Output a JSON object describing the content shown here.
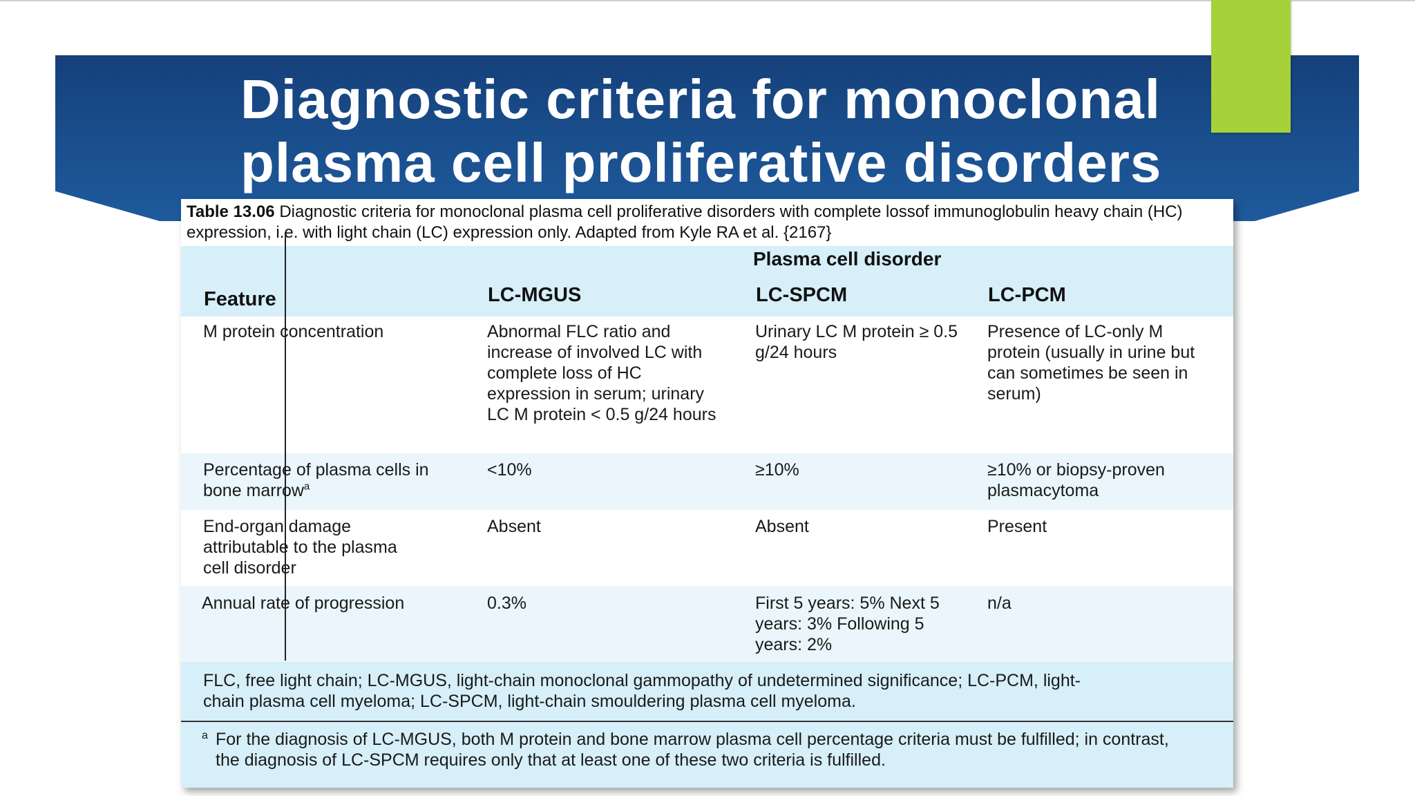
{
  "slide": {
    "title": "Diagnostic criteria for monoclonal plasma cell proliferative disorders"
  },
  "caption": {
    "label": "Table 13.06",
    "text": "Diagnostic criteria for monoclonal plasma cell proliferative disorders with complete lossof immunoglobulin heavy chain (HC) expression, i.e. with light chain (LC) expression only. Adapted from Kyle RA et al. {2167}"
  },
  "table": {
    "group_header": "Plasma cell disorder",
    "columns": [
      "Feature",
      "LC-MGUS",
      "LC-SPCM",
      "LC-PCM"
    ],
    "rows": [
      {
        "feature": "M protein concentration",
        "lc_mgus": "Abnormal FLC ratio and increase of involved LC with complete loss of HC expression in serum; urinary LC M protein < 0.5 g/24 hours",
        "lc_spcm": "Urinary LC M protein ≥ 0.5 g/24 hours",
        "lc_pcm": "Presence of LC-only M protein (usually in urine but can sometimes be seen in serum)"
      },
      {
        "feature": "Percentage of plasma cells in bone marrow",
        "feature_sup": "a",
        "lc_mgus": "<10%",
        "lc_spcm": "≥10%",
        "lc_pcm": "≥10% or biopsy-proven plasmacytoma"
      },
      {
        "feature": "End-organ damage attributable to the plasma cell disorder",
        "lc_mgus": "Absent",
        "lc_spcm": "Absent",
        "lc_pcm": "Present"
      },
      {
        "feature": "Annual rate of progression",
        "lc_mgus": "0.3%",
        "lc_spcm": "First 5 years: 5% Next 5 years: 3% Following 5 years: 2%",
        "lc_pcm": "n/a"
      }
    ],
    "abbreviations": "FLC, free light chain; LC-MGUS, light-chain monoclonal gammopathy of undetermined significance; LC-PCM, light-chain plasma cell myeloma; LC-SPCM, light-chain smouldering plasma cell myeloma.",
    "footnote_marker": "a",
    "footnote": "For the diagnosis of LC-MGUS, both M protein and bone marrow plasma cell percentage criteria must be fulfilled; in contrast, the diagnosis of LC-SPCM requires only that at least one of these two criteria is fulfilled."
  }
}
